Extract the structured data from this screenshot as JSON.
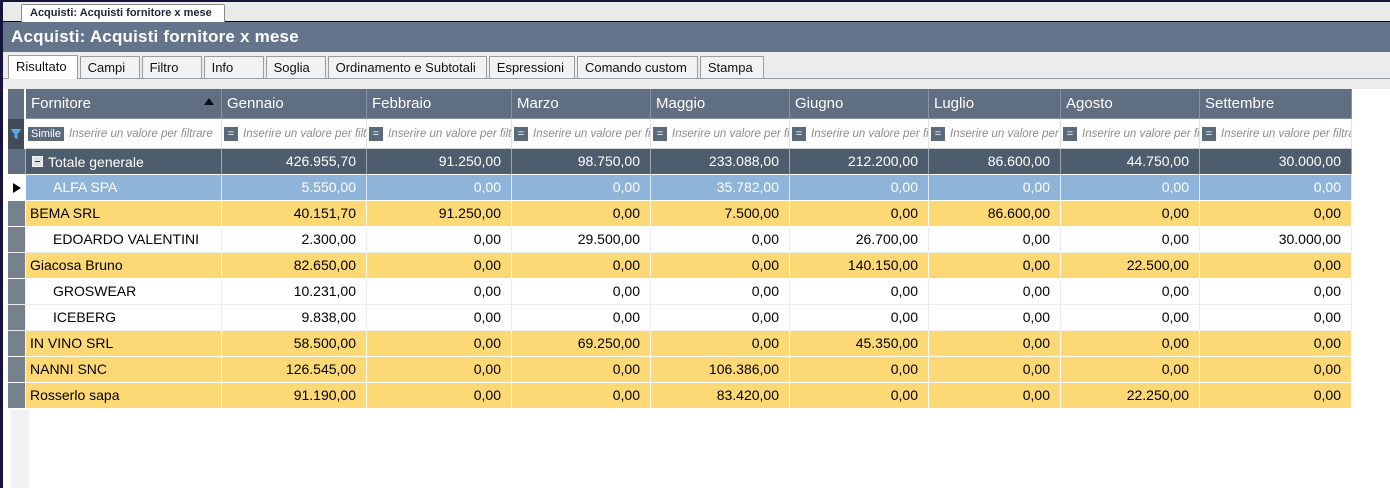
{
  "window": {
    "doc_tab": "Acquisti: Acquisti fornitore x mese",
    "title": "Acquisti: Acquisti fornitore x mese"
  },
  "tabs": [
    {
      "label": "Risultato",
      "active": true
    },
    {
      "label": "Campi",
      "active": false
    },
    {
      "label": "Filtro",
      "active": false
    },
    {
      "label": "Info",
      "active": false
    },
    {
      "label": "Soglia",
      "active": false
    },
    {
      "label": "Ordinamento e Subtotali",
      "active": false
    },
    {
      "label": "Espressioni",
      "active": false
    },
    {
      "label": "Comando custom",
      "active": false
    },
    {
      "label": "Stampa",
      "active": false
    }
  ],
  "grid": {
    "columns": [
      "Fornitore",
      "Gennaio",
      "Febbraio",
      "Marzo",
      "Maggio",
      "Giugno",
      "Luglio",
      "Agosto",
      "Settembre"
    ],
    "sort": {
      "column": "Fornitore",
      "direction": "ascending"
    },
    "filter": {
      "operator_first": "Simile",
      "operator_other": "=",
      "placeholder": "Inserire un valore per filtrare"
    },
    "total_row": {
      "label": "Totale generale",
      "values": [
        "426.955,70",
        "91.250,00",
        "98.750,00",
        "233.088,00",
        "212.200,00",
        "86.600,00",
        "44.750,00",
        "30.000,00"
      ]
    },
    "rows": [
      {
        "name": "ALFA SPA",
        "style": "selected",
        "indent": true,
        "values": [
          "5.550,00",
          "0,00",
          "0,00",
          "35.782,00",
          "0,00",
          "0,00",
          "0,00",
          "0,00"
        ]
      },
      {
        "name": "BEMA SRL",
        "style": "highlight",
        "indent": false,
        "values": [
          "40.151,70",
          "91.250,00",
          "0,00",
          "7.500,00",
          "0,00",
          "86.600,00",
          "0,00",
          "0,00"
        ]
      },
      {
        "name": "EDOARDO VALENTINI",
        "style": "normal",
        "indent": true,
        "values": [
          "2.300,00",
          "0,00",
          "29.500,00",
          "0,00",
          "26.700,00",
          "0,00",
          "0,00",
          "30.000,00"
        ]
      },
      {
        "name": "Giacosa Bruno",
        "style": "highlight",
        "indent": false,
        "values": [
          "82.650,00",
          "0,00",
          "0,00",
          "0,00",
          "140.150,00",
          "0,00",
          "22.500,00",
          "0,00"
        ]
      },
      {
        "name": "GROSWEAR",
        "style": "normal",
        "indent": true,
        "values": [
          "10.231,00",
          "0,00",
          "0,00",
          "0,00",
          "0,00",
          "0,00",
          "0,00",
          "0,00"
        ]
      },
      {
        "name": "ICEBERG",
        "style": "normal",
        "indent": true,
        "values": [
          "9.838,00",
          "0,00",
          "0,00",
          "0,00",
          "0,00",
          "0,00",
          "0,00",
          "0,00"
        ]
      },
      {
        "name": "IN VINO SRL",
        "style": "highlight",
        "indent": false,
        "values": [
          "58.500,00",
          "0,00",
          "69.250,00",
          "0,00",
          "45.350,00",
          "0,00",
          "0,00",
          "0,00"
        ]
      },
      {
        "name": "NANNI SNC",
        "style": "highlight",
        "indent": false,
        "values": [
          "126.545,00",
          "0,00",
          "0,00",
          "106.386,00",
          "0,00",
          "0,00",
          "0,00",
          "0,00"
        ]
      },
      {
        "name": "Rosserlo sapa",
        "style": "highlight",
        "indent": false,
        "values": [
          "91.190,00",
          "0,00",
          "0,00",
          "83.420,00",
          "0,00",
          "0,00",
          "22.250,00",
          "0,00"
        ]
      }
    ]
  },
  "colors": {
    "titlebar": "#64748b",
    "header": "#5f6e80",
    "total_row": "#4e5d6d",
    "selected_row": "#8fb4da",
    "highlight_row": "#fcd975",
    "gutter": "#75818d",
    "window_border": "#14143c",
    "funnel_icon": "#57a8ee"
  }
}
